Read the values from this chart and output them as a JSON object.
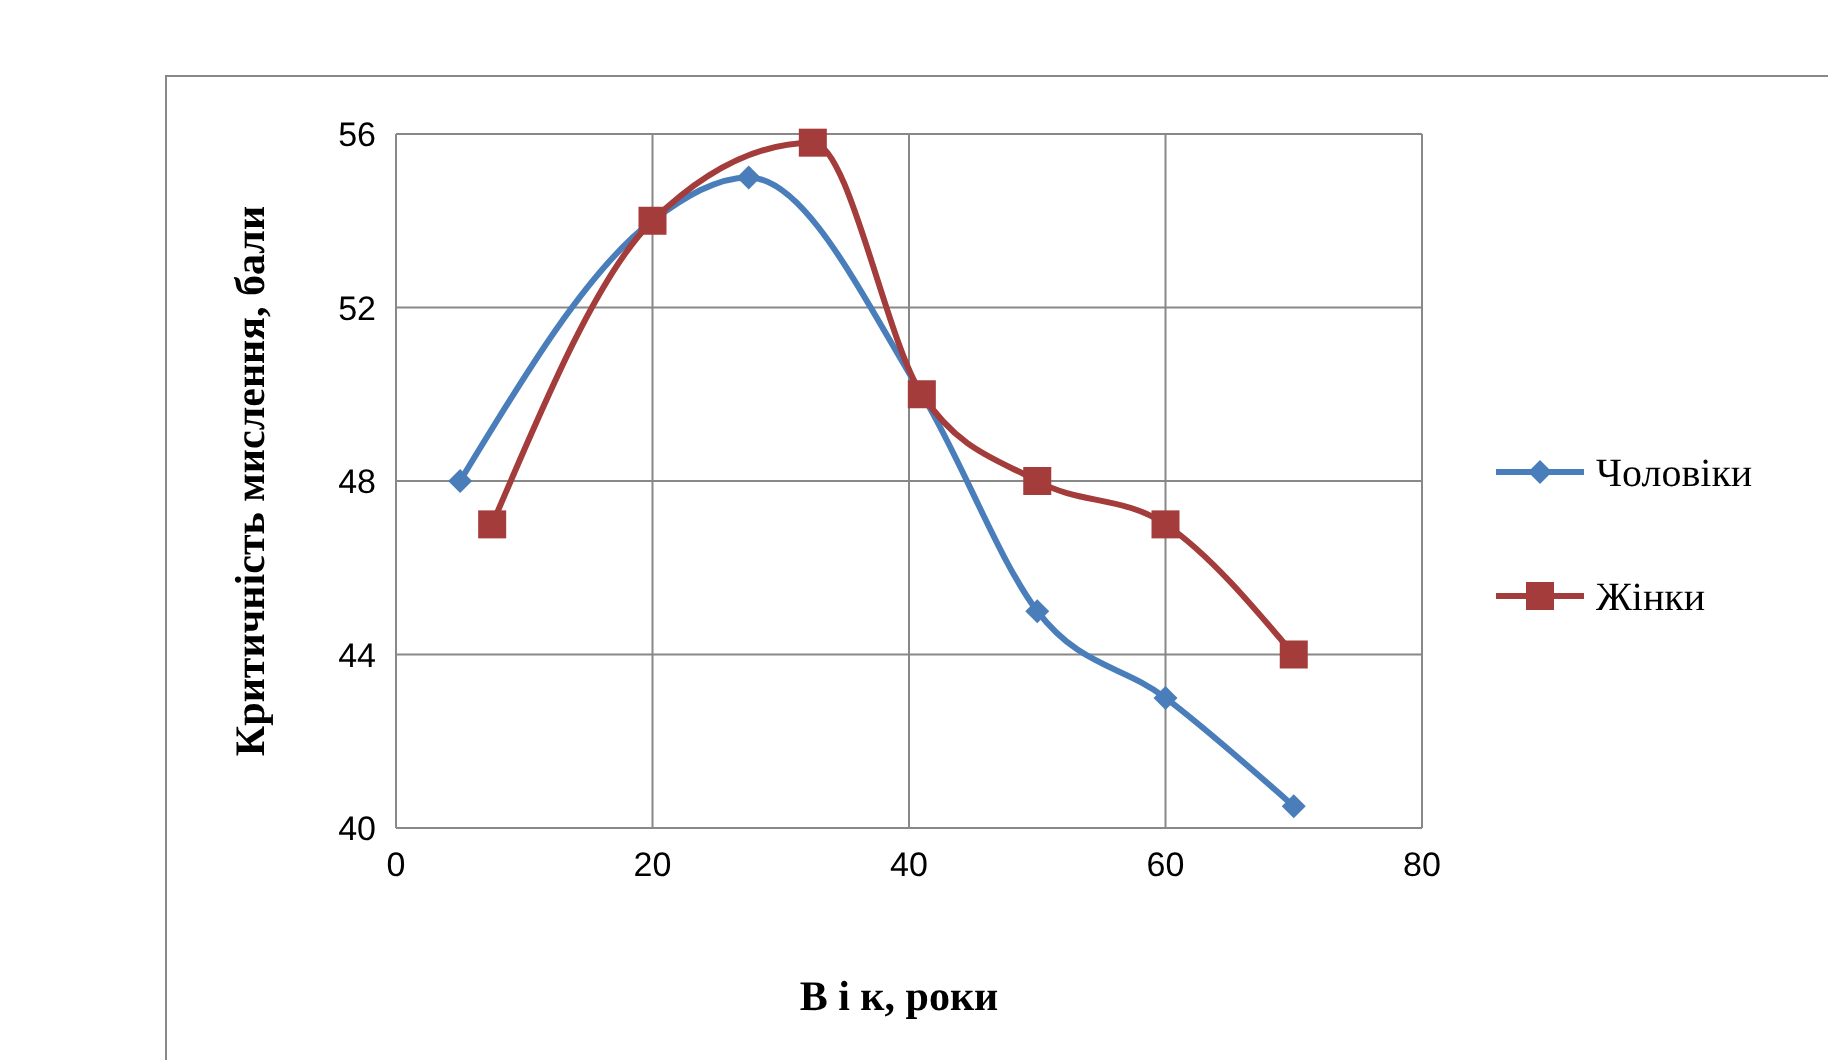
{
  "chart_data": {
    "type": "line",
    "xlabel": "В і к, роки",
    "ylabel": "Критичність мислення, бали",
    "xlim": [
      0,
      80
    ],
    "xticks": [
      0,
      20,
      40,
      60,
      80
    ],
    "ylim": [
      40,
      56
    ],
    "yticks": [
      40,
      44,
      48,
      52,
      56
    ],
    "grid": true,
    "legend": "right",
    "series": [
      {
        "name": "Чоловіки",
        "color": "#4a7ebb",
        "marker": "diamond",
        "x": [
          5,
          20,
          27.5,
          41,
          50,
          60,
          70
        ],
        "values": [
          48,
          54,
          55,
          50,
          45,
          43,
          40.5
        ]
      },
      {
        "name": "Жінки",
        "color": "#a33c3a",
        "marker": "square",
        "x": [
          7.5,
          20,
          32.5,
          41,
          50,
          60,
          70
        ],
        "values": [
          47,
          54,
          55.8,
          50,
          48,
          47,
          44
        ]
      }
    ]
  }
}
